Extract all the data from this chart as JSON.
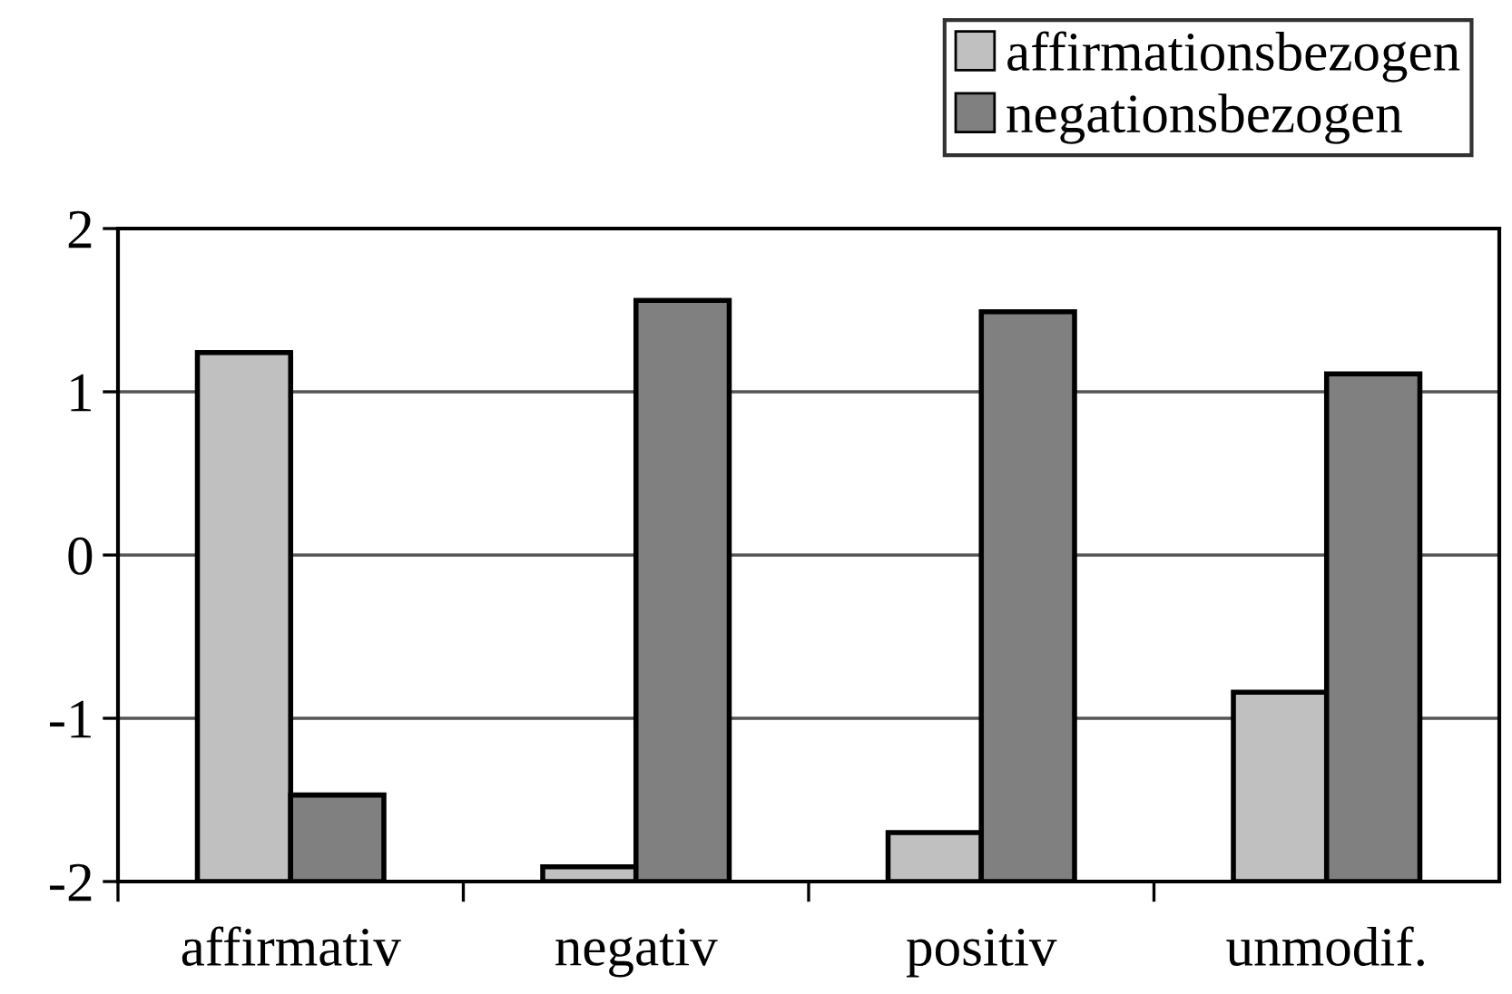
{
  "chart_data": {
    "type": "bar",
    "categories": [
      "affirmativ",
      "negativ",
      "positiv",
      "unmodif."
    ],
    "series": [
      {
        "name": "affirmationsbezogen",
        "color": "#c0c0c0",
        "base": [
          -2,
          -2,
          -2,
          -2
        ],
        "values": [
          3.24,
          0.09,
          0.3,
          1.16
        ]
      },
      {
        "name": "negationsbezogen",
        "color": "#808080",
        "base": [
          -2,
          -2,
          -2,
          -2
        ],
        "values": [
          0.53,
          3.56,
          3.49,
          3.11
        ]
      }
    ],
    "ylim": [
      -2,
      2
    ],
    "yticks": [
      -2,
      -1,
      0,
      1,
      2
    ],
    "grid": "y",
    "legend": "top right"
  }
}
